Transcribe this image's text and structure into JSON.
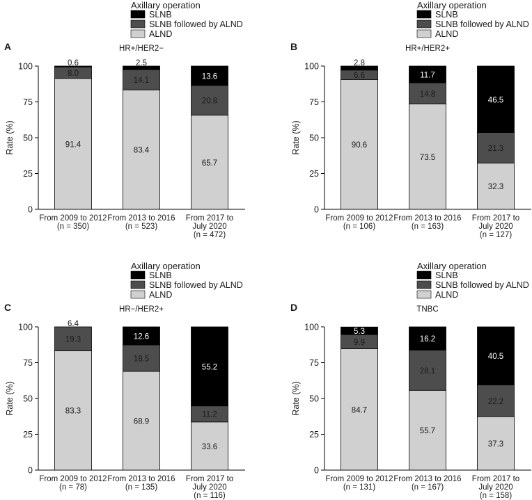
{
  "legend_title": "Axillary operation",
  "legend": [
    {
      "name": "SLNB",
      "color": "#000000"
    },
    {
      "name": "SLNB followed by ALND",
      "color": "#4d4d4d"
    },
    {
      "name": "ALND",
      "color": "#d0d0d0"
    }
  ],
  "chart_data": [
    {
      "type": "bar",
      "stacked": true,
      "panel_label": "A",
      "title": "HR+/HER2−",
      "ylabel": "Rate (%)",
      "ylim": [
        0,
        100
      ],
      "yticks": [
        0,
        25,
        50,
        75,
        100
      ],
      "categories": [
        [
          "From 2009 to 2012",
          "(n = 350)"
        ],
        [
          "From 2013 to 2016",
          "(n = 523)"
        ],
        [
          "From 2017 to",
          "July 2020",
          "(n = 472)"
        ]
      ],
      "series": [
        {
          "name": "ALND",
          "values": [
            91.4,
            83.4,
            65.7
          ]
        },
        {
          "name": "SLNB followed by ALND",
          "values": [
            8.0,
            14.1,
            20.8
          ]
        },
        {
          "name": "SLNB",
          "values": [
            0.6,
            2.5,
            13.6
          ]
        }
      ]
    },
    {
      "type": "bar",
      "stacked": true,
      "panel_label": "B",
      "title": "HR+/HER2+",
      "ylabel": "Rate (%)",
      "ylim": [
        0,
        100
      ],
      "yticks": [
        0,
        25,
        50,
        75,
        100
      ],
      "categories": [
        [
          "From 2009 to 2012",
          "(n = 106)"
        ],
        [
          "From 2013 to 2016",
          "(n = 163)"
        ],
        [
          "From 2017 to",
          "July 2020",
          "(n = 127)"
        ]
      ],
      "series": [
        {
          "name": "ALND",
          "values": [
            90.6,
            73.5,
            32.3
          ]
        },
        {
          "name": "SLNB followed by ALND",
          "values": [
            6.6,
            14.8,
            21.3
          ]
        },
        {
          "name": "SLNB",
          "values": [
            2.8,
            11.7,
            46.5
          ]
        }
      ]
    },
    {
      "type": "bar",
      "stacked": true,
      "panel_label": "C",
      "title": "HR−/HER2+",
      "ylabel": "Rate (%)",
      "ylim": [
        0,
        100
      ],
      "yticks": [
        0,
        25,
        50,
        75,
        100
      ],
      "categories": [
        [
          "From 2009 to 2012",
          "(n = 78)"
        ],
        [
          "From 2013 to 2016",
          "(n = 135)"
        ],
        [
          "From 2017 to",
          "July 2020",
          "(n = 116)"
        ]
      ],
      "series": [
        {
          "name": "ALND",
          "values": [
            83.3,
            68.9,
            33.6
          ]
        },
        {
          "name": "SLNB followed by ALND",
          "values": [
            19.3,
            18.5,
            11.2
          ]
        },
        {
          "name": "SLNB",
          "values": [
            6.4,
            12.6,
            55.2
          ]
        }
      ]
    },
    {
      "type": "bar",
      "stacked": true,
      "panel_label": "D",
      "title": "TNBC",
      "ylabel": "Rate (%)",
      "ylim": [
        0,
        100
      ],
      "yticks": [
        0,
        25,
        50,
        75,
        100
      ],
      "categories": [
        [
          "From 2009 to 2012",
          "(n = 131)"
        ],
        [
          "From 2013 to 2016",
          "(n = 167)"
        ],
        [
          "From 2017 to",
          "July 2020",
          "(n = 158)"
        ]
      ],
      "series": [
        {
          "name": "ALND",
          "values": [
            84.7,
            55.7,
            37.3
          ]
        },
        {
          "name": "SLNB followed by ALND",
          "values": [
            9.9,
            28.1,
            22.2
          ]
        },
        {
          "name": "SLNB",
          "values": [
            5.3,
            16.2,
            40.5
          ]
        }
      ]
    }
  ]
}
